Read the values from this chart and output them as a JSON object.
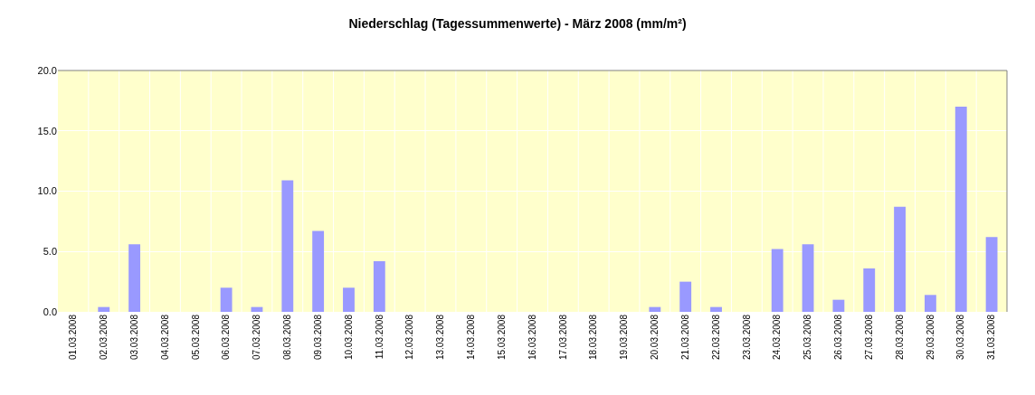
{
  "chart_data": {
    "type": "bar",
    "title": "Niederschlag (Tagessummenwerte) - März 2008 (mm/m²)",
    "categories": [
      "01.03.2008",
      "02.03.2008",
      "03.03.2008",
      "04.03.2008",
      "05.03.2008",
      "06.03.2008",
      "07.03.2008",
      "08.03.2008",
      "09.03.2008",
      "10.03.2008",
      "11.03.2008",
      "12.03.2008",
      "13.03.2008",
      "14.03.2008",
      "15.03.2008",
      "16.03.2008",
      "17.03.2008",
      "18.03.2008",
      "19.03.2008",
      "20.03.2008",
      "21.03.2008",
      "22.03.2008",
      "23.03.2008",
      "24.03.2008",
      "25.03.2008",
      "26.03.2008",
      "27.03.2008",
      "28.03.2008",
      "29.03.2008",
      "30.03.2008",
      "31.03.2008"
    ],
    "values": [
      0,
      0.4,
      5.6,
      0,
      0,
      2.0,
      0.4,
      10.9,
      6.7,
      2.0,
      4.2,
      0,
      0,
      0,
      0,
      0,
      0,
      0,
      0,
      0.4,
      2.5,
      0.4,
      0,
      5.2,
      5.6,
      1.0,
      3.6,
      8.7,
      1.4,
      17.0,
      6.2
    ],
    "color": "#9999ff",
    "ylim": [
      0,
      20
    ],
    "yticks": [
      {
        "value": 0,
        "label": "0.0"
      },
      {
        "value": 5,
        "label": "5.0"
      },
      {
        "value": 10,
        "label": "10.0"
      },
      {
        "value": 15,
        "label": "15.0"
      },
      {
        "value": 20,
        "label": "20.0"
      }
    ],
    "grid": true
  }
}
